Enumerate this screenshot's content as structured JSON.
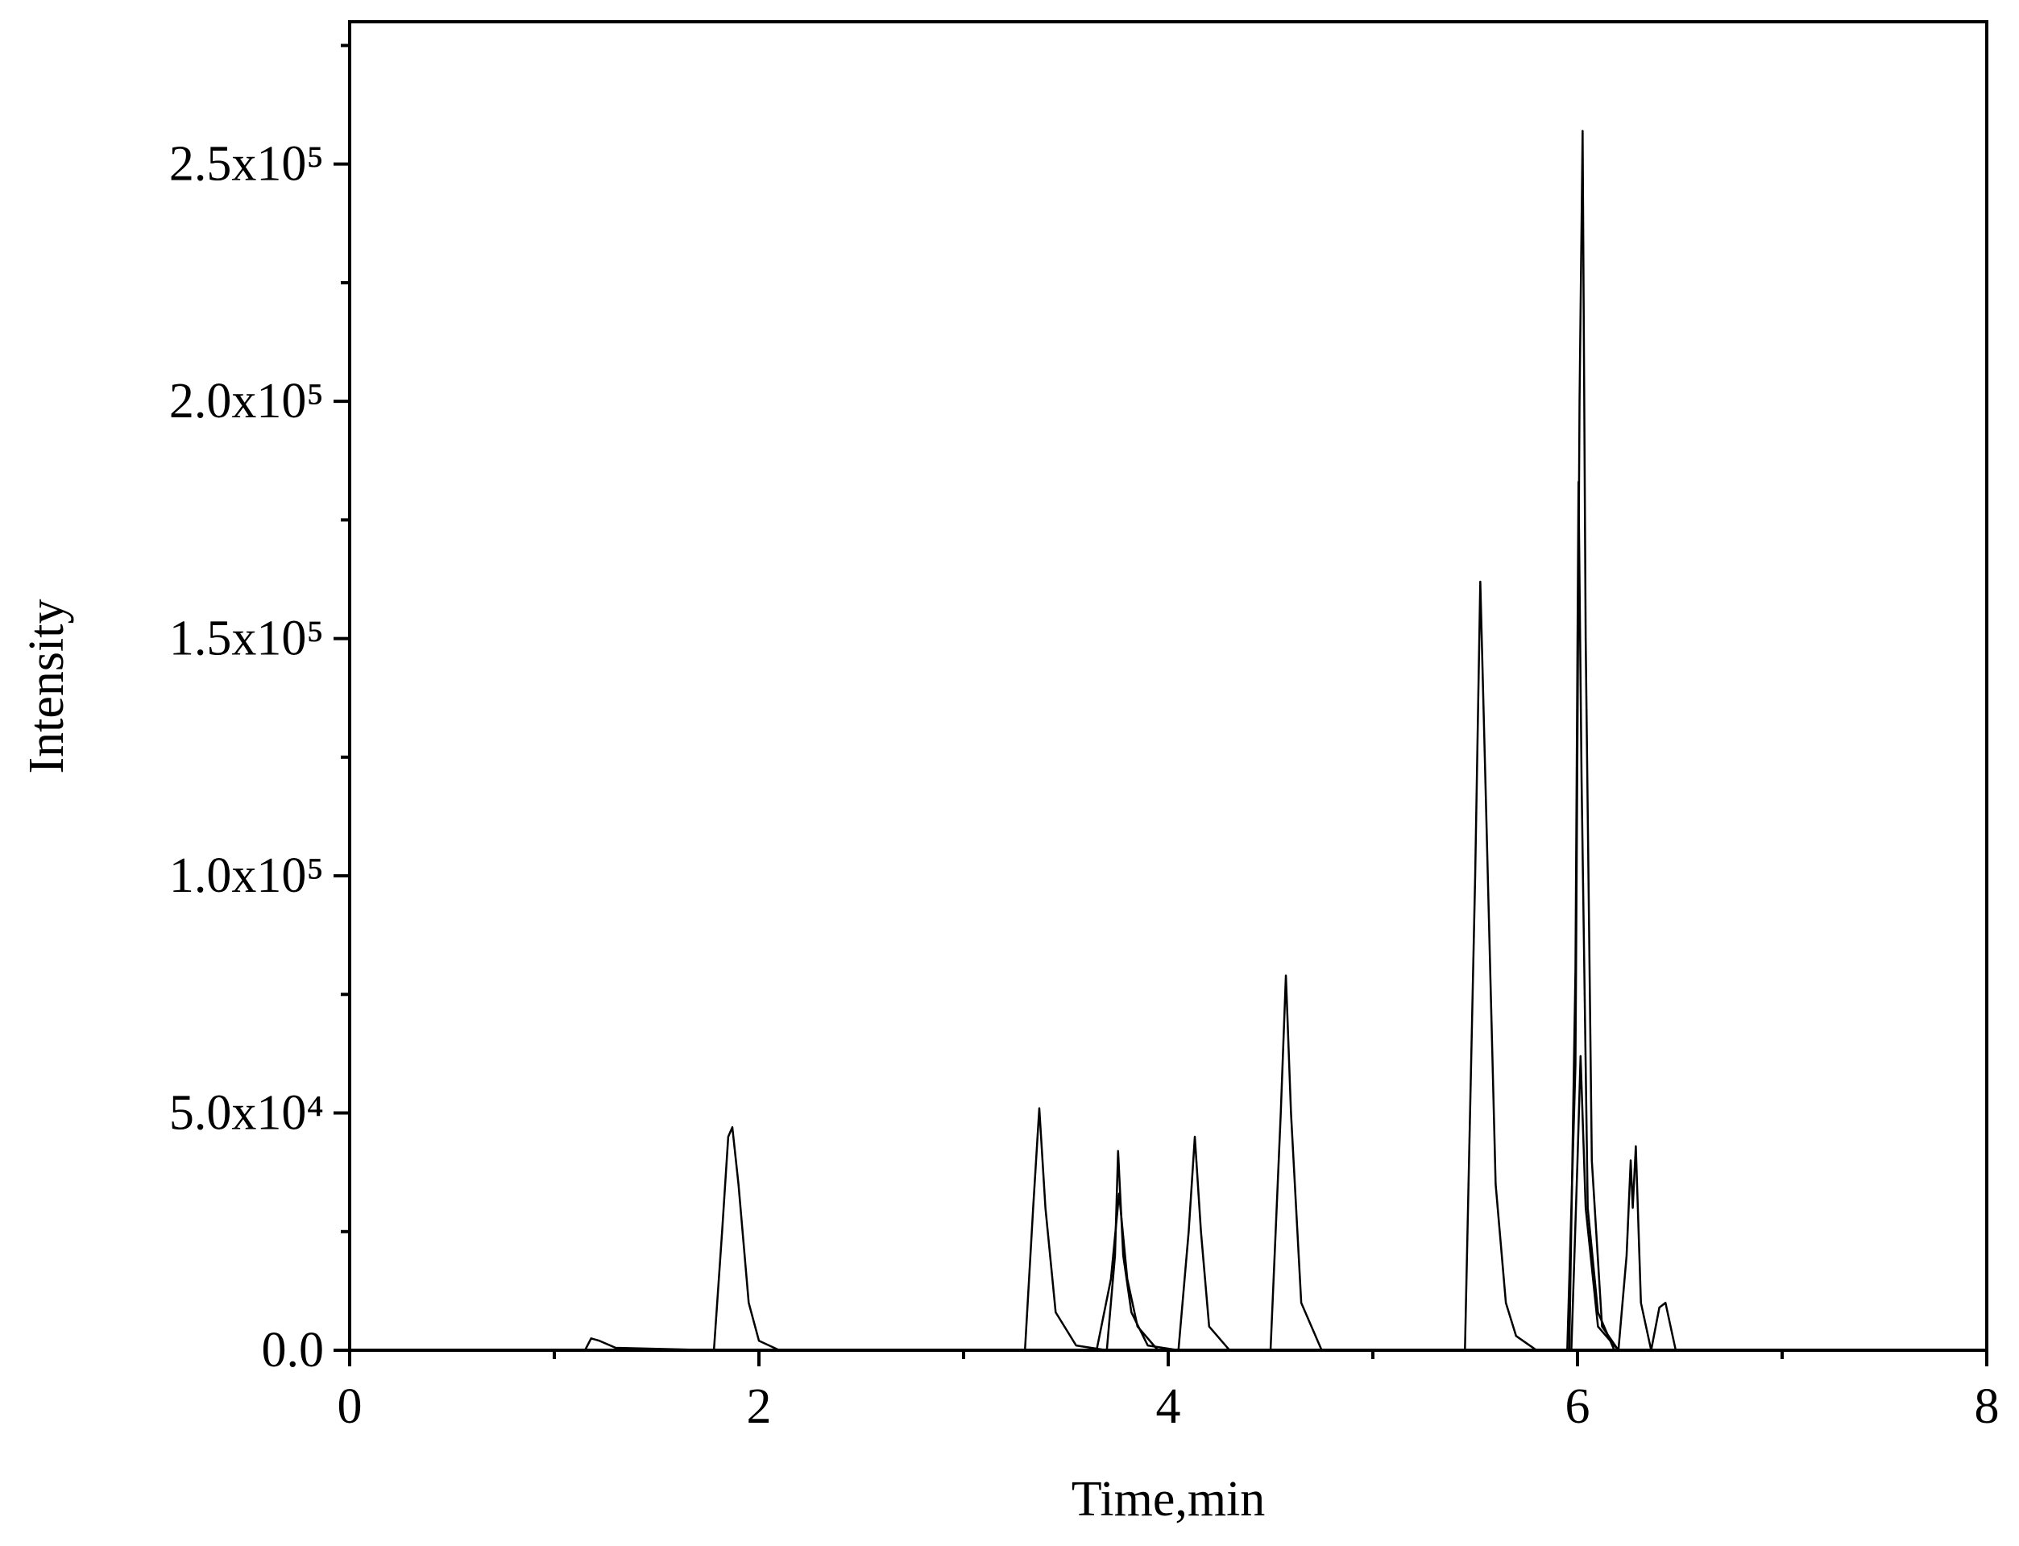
{
  "chart_data": {
    "type": "line",
    "x_label": "Time,min",
    "y_label": "Intensity",
    "xlim": [
      0,
      8
    ],
    "xticks": [
      0,
      2,
      4,
      6,
      8
    ],
    "xminorticks": [
      1,
      3,
      5,
      7
    ],
    "ylim": [
      0,
      280000
    ],
    "yticks": [
      {
        "value": 0,
        "label": "0.0"
      },
      {
        "value": 50000,
        "label": "5.0x10⁴"
      },
      {
        "value": 100000,
        "label": "1.0x10⁵"
      },
      {
        "value": 150000,
        "label": "1.5x10⁵"
      },
      {
        "value": 200000,
        "label": "2.0x10⁵"
      },
      {
        "value": 250000,
        "label": "2.5x10⁵"
      }
    ],
    "yminorticks": [
      25000,
      75000,
      125000,
      175000,
      225000,
      275000
    ],
    "grid": false,
    "series": [
      {
        "color": "#000000",
        "x": [
          0.7,
          1.15,
          1.18,
          1.22,
          1.3,
          1.78,
          1.82,
          1.85,
          1.87,
          1.9,
          1.95,
          2.0,
          2.1,
          3.3,
          3.34,
          3.37,
          3.4,
          3.45,
          3.55,
          3.7,
          3.74,
          3.755,
          3.78,
          3.82,
          3.9,
          4.05,
          4.1,
          4.13,
          4.16,
          4.2,
          4.3,
          4.5,
          4.55,
          4.575,
          4.6,
          4.65,
          4.75,
          5.45,
          5.5,
          5.525,
          5.55,
          5.6,
          5.65,
          5.7,
          5.8,
          8.0
        ],
        "values": [
          0,
          0,
          2500,
          2000,
          500,
          0,
          25000,
          45000,
          47000,
          35000,
          10000,
          2000,
          0,
          0,
          30000,
          51000,
          30000,
          8000,
          1000,
          0,
          20000,
          42000,
          20000,
          8000,
          1000,
          0,
          25000,
          45000,
          25000,
          5000,
          0,
          0,
          50000,
          79000,
          50000,
          10000,
          0,
          0,
          100000,
          162000,
          120000,
          35000,
          10000,
          3000,
          0,
          0
        ]
      },
      {
        "color": "#000000",
        "x": [
          3.65,
          3.72,
          3.76,
          3.8,
          3.85,
          3.95
        ],
        "values": [
          0,
          15000,
          33000,
          15000,
          5000,
          0
        ]
      },
      {
        "color": "#000000",
        "x": [
          5.95,
          5.99,
          6.01,
          6.025,
          6.04,
          6.07,
          6.12,
          6.2
        ],
        "values": [
          0,
          60000,
          200000,
          257000,
          150000,
          40000,
          5000,
          0
        ]
      },
      {
        "color": "#000000",
        "x": [
          5.96,
          5.99,
          6.005,
          6.02,
          6.05,
          6.1,
          6.18
        ],
        "values": [
          0,
          80000,
          183000,
          120000,
          30000,
          8000,
          0
        ]
      },
      {
        "color": "#000000",
        "x": [
          5.97,
          6.0,
          6.015,
          6.04,
          6.1,
          6.2,
          6.24,
          6.26,
          6.27,
          6.285,
          6.31,
          6.36,
          6.4,
          6.43,
          6.48
        ],
        "values": [
          0,
          40000,
          62000,
          30000,
          5000,
          0,
          20000,
          40000,
          30000,
          43000,
          10000,
          0,
          9000,
          10000,
          0
        ]
      }
    ]
  }
}
